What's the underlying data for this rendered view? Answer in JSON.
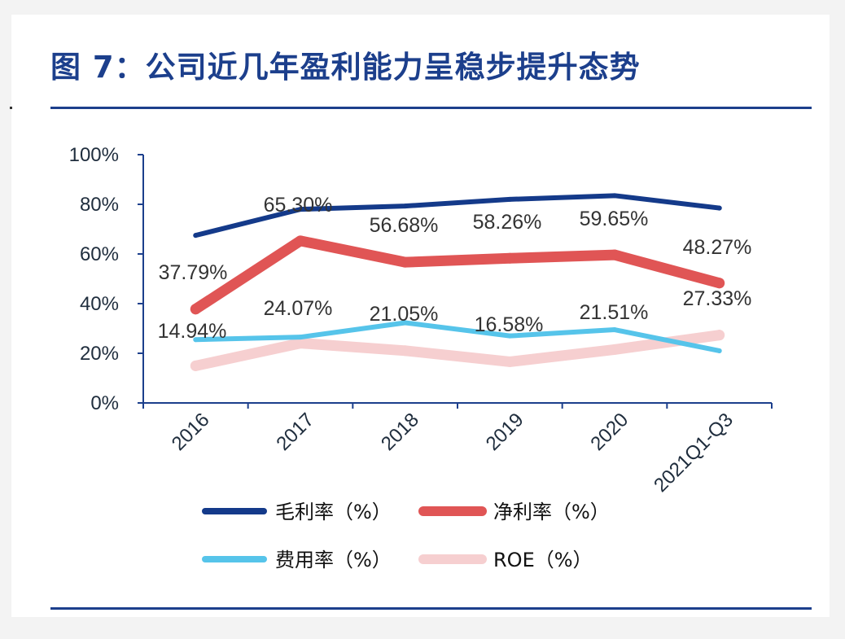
{
  "figure": {
    "title": "图 7：公司近几年盈利能力呈稳步提升态势"
  },
  "chart_data": {
    "type": "line",
    "title": "",
    "xlabel": "",
    "ylabel": "",
    "ylim": [
      0,
      100
    ],
    "y_ticks": [
      "0%",
      "20%",
      "40%",
      "60%",
      "80%",
      "100%"
    ],
    "categories": [
      "2016",
      "2017",
      "2018",
      "2019",
      "2020",
      "2021Q1-Q3"
    ],
    "grid": false,
    "legend_position": "bottom",
    "series": [
      {
        "name": "毛利率（%）",
        "color": "#143a8a",
        "values": [
          67.5,
          78.0,
          79.3,
          82.0,
          83.5,
          78.5
        ],
        "labels": []
      },
      {
        "name": "净利率（%）",
        "color": "#e05555",
        "values": [
          37.79,
          65.3,
          56.68,
          58.26,
          59.65,
          48.27
        ],
        "labels": [
          "37.79%",
          "65.30%",
          "56.68%",
          "58.26%",
          "59.65%",
          "48.27%"
        ]
      },
      {
        "name": "费用率（%）",
        "color": "#56c4ea",
        "values": [
          25.5,
          26.5,
          32.3,
          27.0,
          29.5,
          21.0
        ],
        "labels": []
      },
      {
        "name": "ROE（%）",
        "color": "#f6cfd0",
        "values": [
          14.94,
          24.07,
          21.05,
          16.58,
          21.51,
          27.33
        ],
        "labels": [
          "14.94%",
          "24.07%",
          "21.05%",
          "16.58%",
          "21.51%",
          "27.33%"
        ]
      }
    ]
  }
}
